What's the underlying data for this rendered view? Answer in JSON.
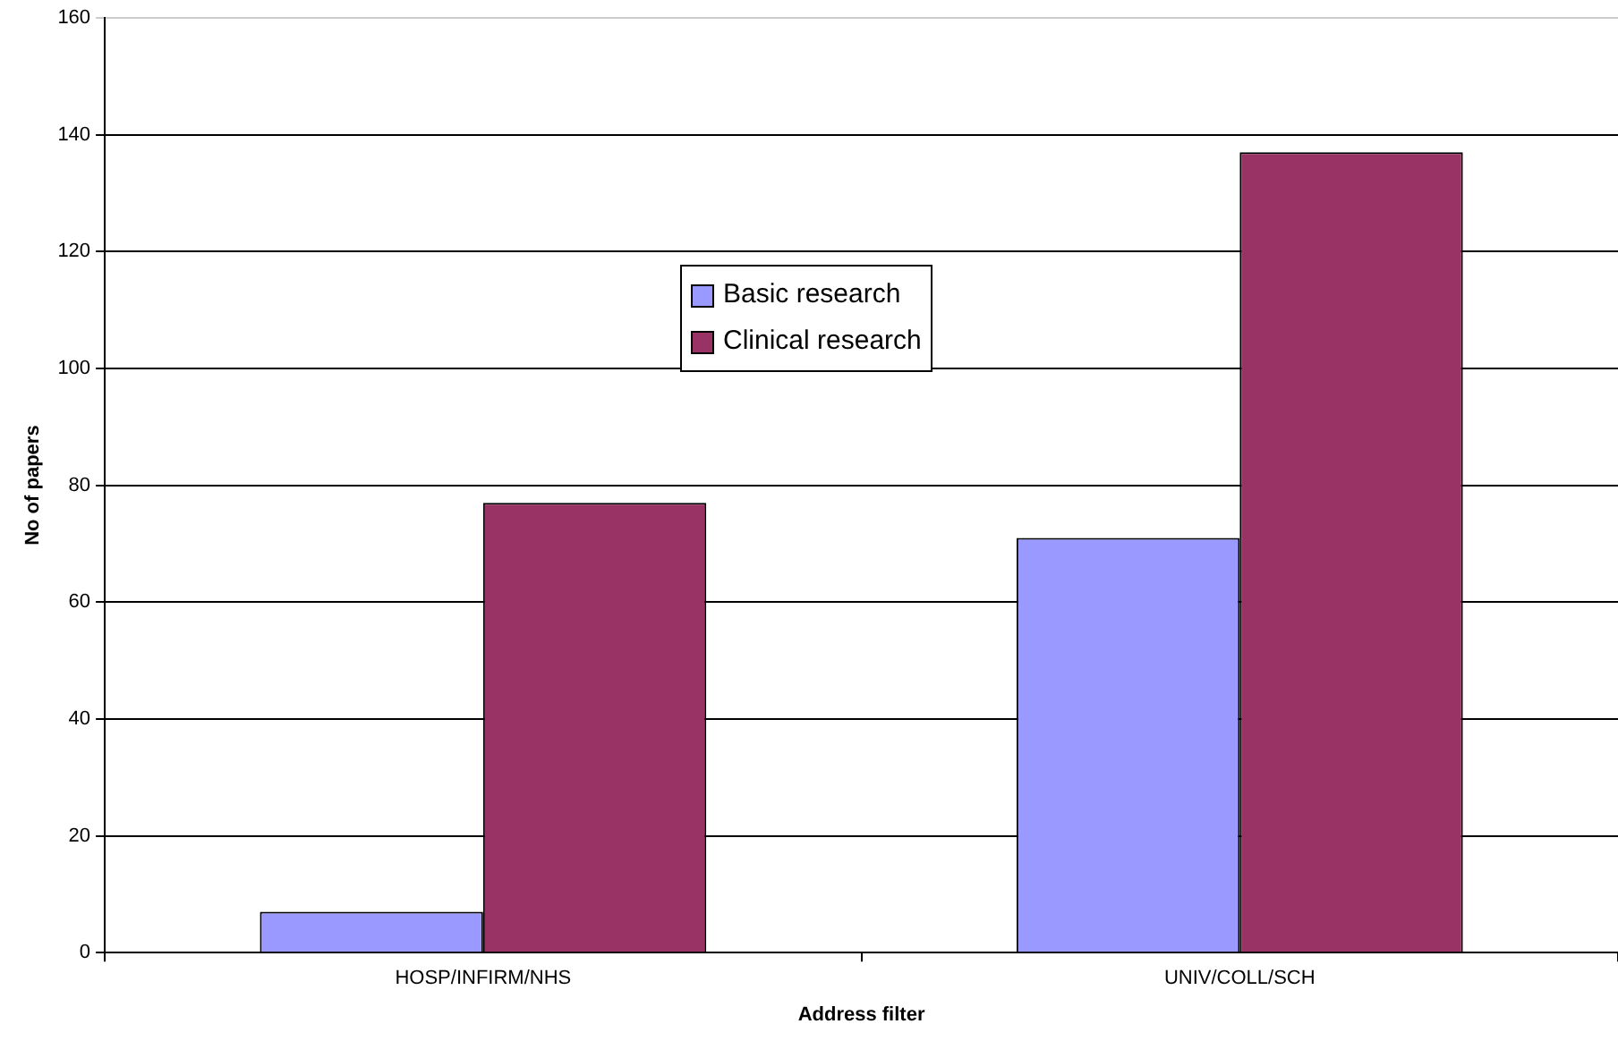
{
  "chart_data": {
    "type": "bar",
    "xlabel": "Address filter",
    "ylabel": "No of papers",
    "categories": [
      "HOSP/INFIRM/NHS",
      "UNIV/COLL/SCH"
    ],
    "series": [
      {
        "name": "Basic research",
        "color": "#9999ff",
        "values": [
          7,
          71
        ]
      },
      {
        "name": "Clinical research",
        "color": "#993366",
        "values": [
          77,
          137
        ]
      }
    ],
    "ylim": [
      0,
      160
    ],
    "yticks": [
      0,
      20,
      40,
      60,
      80,
      100,
      120,
      140,
      160
    ],
    "grid": "y",
    "legend": "top"
  }
}
